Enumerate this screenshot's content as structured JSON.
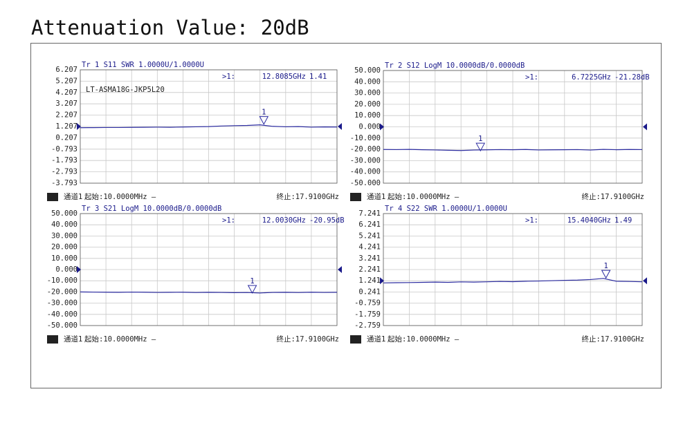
{
  "title": "Attenuation Value: 20dB",
  "chart_data": [
    {
      "type": "line",
      "title": "Tr 1  S11 SWR 1.0000U/1.0000U",
      "annotation": "LT-ASMA18G-JKP5L20",
      "badge": "1",
      "channel": "通道1",
      "start": "起始:10.0000MHz —",
      "stop": "终止:17.9100GHz",
      "color": "#2b2ba0",
      "reference": 1.207,
      "xlim": [
        0.01,
        17.91
      ],
      "x": [
        0.01,
        0.9,
        1.8,
        2.69,
        3.59,
        4.48,
        5.38,
        6.27,
        7.17,
        8.06,
        8.96,
        9.85,
        10.75,
        11.64,
        12.54,
        13.43,
        14.33,
        15.22,
        16.12,
        17.01,
        17.91
      ],
      "values": [
        1.1,
        1.11,
        1.12,
        1.12,
        1.13,
        1.14,
        1.15,
        1.14,
        1.16,
        1.18,
        1.2,
        1.25,
        1.28,
        1.3,
        1.35,
        1.22,
        1.18,
        1.2,
        1.15,
        1.17,
        1.16
      ],
      "ylim": [
        -3.793,
        6.207
      ],
      "yticks": [
        6.207,
        5.207,
        4.207,
        3.207,
        2.207,
        1.207,
        0.207,
        -0.793,
        -1.793,
        -2.793,
        -3.793
      ],
      "marker": {
        "readout": ">1:",
        "number": "1",
        "x": 12.8085,
        "x_label": "12.8085GHz",
        "value": 1.41
      }
    },
    {
      "type": "line",
      "title": "Tr 2  S12 LogM 10.0000dB/0.0000dB",
      "badge": "2",
      "channel": "通道1",
      "start": "起始:10.0000MHz —",
      "stop": "终止:17.9100GHz",
      "color": "#2b2ba0",
      "reference": 0,
      "xlim": [
        0.01,
        17.91
      ],
      "x": [
        0.01,
        0.9,
        1.8,
        2.69,
        3.59,
        4.48,
        5.38,
        6.27,
        7.17,
        8.06,
        8.96,
        9.85,
        10.75,
        11.64,
        12.54,
        13.43,
        14.33,
        15.22,
        16.12,
        17.01,
        17.91
      ],
      "values": [
        -20.1,
        -20.2,
        -20.0,
        -20.3,
        -20.5,
        -20.8,
        -21.0,
        -20.6,
        -20.4,
        -20.2,
        -20.3,
        -20.1,
        -20.5,
        -20.4,
        -20.3,
        -20.2,
        -20.6,
        -20.0,
        -20.3,
        -20.1,
        -20.2
      ],
      "ylim": [
        -50,
        50
      ],
      "yticks": [
        {
          "value": 50,
          "label": "50.000"
        },
        {
          "value": 40,
          "label": "40.000"
        },
        {
          "value": 30,
          "label": "30.000"
        },
        {
          "value": 20,
          "label": "20.000"
        },
        {
          "value": 10,
          "label": "10.000"
        },
        {
          "value": 0,
          "label": "0.000"
        },
        {
          "value": -10,
          "label": "-10.000"
        },
        {
          "value": -20,
          "label": "-20.000"
        },
        {
          "value": -30,
          "label": "-30.000"
        },
        {
          "value": -40,
          "label": "-40.000"
        },
        {
          "value": -50,
          "label": "-50.000"
        }
      ],
      "marker": {
        "readout": ">1:",
        "number": "1",
        "x": 6.7225,
        "x_label": "6.7225GHz",
        "value": -21.28,
        "value_label": "-21.28dB"
      }
    },
    {
      "type": "line",
      "title": "Tr 3  S21 LogM 10.0000dB/0.0000dB",
      "badge": "3",
      "channel": "通道1",
      "start": "起始:10.0000MHz —",
      "stop": "终止:17.9100GHz",
      "color": "#2b2ba0",
      "reference": 0,
      "xlim": [
        0.01,
        17.91
      ],
      "x": [
        0.01,
        0.9,
        1.8,
        2.69,
        3.59,
        4.48,
        5.38,
        6.27,
        7.17,
        8.06,
        8.96,
        9.85,
        10.75,
        11.64,
        12.54,
        13.43,
        14.33,
        15.22,
        16.12,
        17.01,
        17.91
      ],
      "values": [
        -20.0,
        -20.1,
        -20.2,
        -20.3,
        -20.1,
        -20.2,
        -20.4,
        -20.3,
        -20.2,
        -20.5,
        -20.3,
        -20.4,
        -20.6,
        -20.5,
        -20.9,
        -20.4,
        -20.3,
        -20.5,
        -20.2,
        -20.4,
        -20.3
      ],
      "ylim": [
        -50,
        50
      ],
      "yticks": [
        {
          "value": 50,
          "label": "50.000"
        },
        {
          "value": 40,
          "label": "40.000"
        },
        {
          "value": 30,
          "label": "30.000"
        },
        {
          "value": 20,
          "label": "20.000"
        },
        {
          "value": 10,
          "label": "10.000"
        },
        {
          "value": 0,
          "label": "0.000"
        },
        {
          "value": -10,
          "label": "-10.000"
        },
        {
          "value": -20,
          "label": "-20.000"
        },
        {
          "value": -30,
          "label": "-30.000"
        },
        {
          "value": -40,
          "label": "-40.000"
        },
        {
          "value": -50,
          "label": "-50.000"
        }
      ],
      "marker": {
        "readout": ">1:",
        "number": "1",
        "x": 12.003,
        "x_label": "12.0030GHz",
        "value": -20.95,
        "value_label": "-20.95dB"
      }
    },
    {
      "type": "line",
      "title": "Tr 4  S22 SWR 1.0000U/1.0000U",
      "badge": "4",
      "channel": "通道1",
      "start": "起始:10.0000MHz —",
      "stop": "终止:17.9100GHz",
      "color": "#2b2ba0",
      "reference": 1.241,
      "xlim": [
        0.01,
        17.91
      ],
      "x": [
        0.01,
        0.9,
        1.8,
        2.69,
        3.59,
        4.48,
        5.38,
        6.27,
        7.17,
        8.06,
        8.96,
        9.85,
        10.75,
        11.64,
        12.54,
        13.43,
        14.33,
        15.22,
        16.12,
        17.01,
        17.91
      ],
      "values": [
        1.05,
        1.07,
        1.08,
        1.1,
        1.12,
        1.1,
        1.14,
        1.12,
        1.15,
        1.18,
        1.16,
        1.2,
        1.22,
        1.25,
        1.28,
        1.3,
        1.35,
        1.45,
        1.2,
        1.18,
        1.15
      ],
      "ylim": [
        -2.759,
        7.241
      ],
      "yticks": [
        7.241,
        6.241,
        5.241,
        4.241,
        3.241,
        2.241,
        1.241,
        0.241,
        -0.759,
        -1.759,
        -2.759
      ],
      "marker": {
        "readout": ">1:",
        "number": "1",
        "x": 15.404,
        "x_label": "15.4040GHz",
        "value": 1.49
      }
    }
  ]
}
